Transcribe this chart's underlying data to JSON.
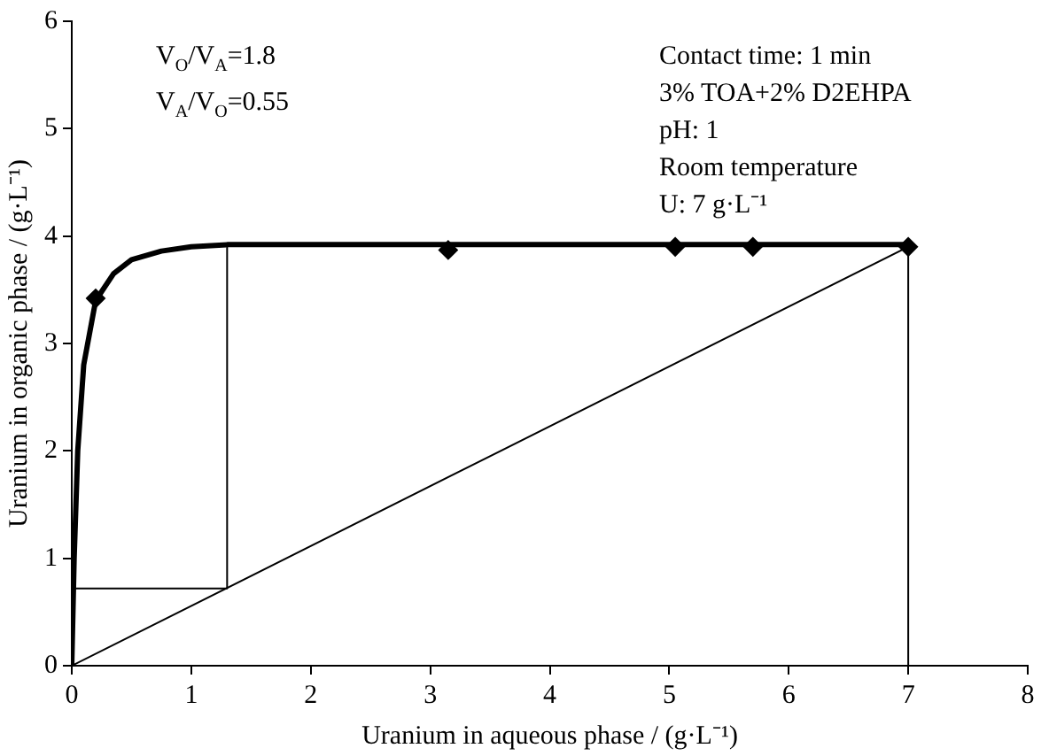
{
  "chart_data": {
    "type": "line",
    "xlabel": "Uranium in aqueous phase / (g·L⁻¹)",
    "ylabel": "Uranium in organic phase / (g·L⁻¹)",
    "xlim": [
      0,
      8
    ],
    "xticks": [
      0,
      1,
      2,
      3,
      4,
      5,
      6,
      7,
      8
    ],
    "ylim": [
      0,
      6
    ],
    "yticks": [
      0,
      1,
      2,
      3,
      4,
      5,
      6
    ],
    "grid": false,
    "legend": false,
    "series": [
      {
        "color": "#000000",
        "marker": "none",
        "x": [
          0,
          0.02,
          0.05,
          0.1,
          0.2,
          0.35,
          0.5,
          0.75,
          1,
          1.3,
          7
        ],
        "values": [
          0,
          1,
          2,
          2.8,
          3.4,
          3.65,
          3.78,
          3.86,
          3.9,
          3.92,
          3.92
        ]
      },
      {
        "type": "scatter",
        "color": "#000000",
        "marker": "diamond",
        "x": [
          0.2,
          3.15,
          5.05,
          5.7,
          7
        ],
        "values": [
          3.42,
          3.87,
          3.9,
          3.9,
          3.9
        ]
      },
      {
        "color": "#000000",
        "marker": "none",
        "x": [
          0,
          7,
          7
        ],
        "values": [
          0,
          3.9,
          0
        ]
      },
      {
        "color": "#000000",
        "marker": "none",
        "x": [
          0,
          1.3,
          1.3
        ],
        "values": [
          0.72,
          0.72,
          3.92
        ]
      }
    ],
    "annotations": [
      "V$_{O}$/V$_{A}$=1.8",
      "V$_{A}$/V$_{O}$=0.55",
      "Contact time: 1 min",
      "3% TOA+2% D2EHPA",
      "pH: 1",
      "Room temperature",
      "U: 7 g·L⁻¹"
    ]
  }
}
